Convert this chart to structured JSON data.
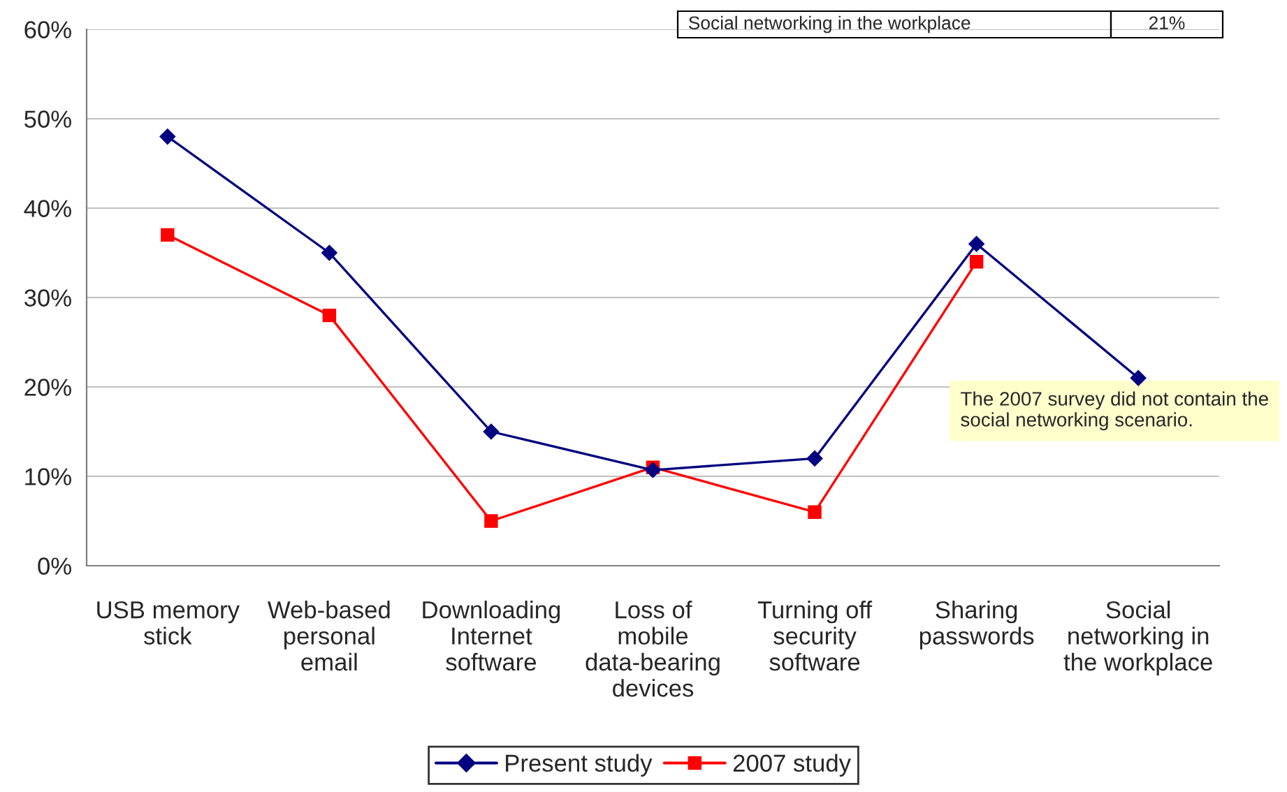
{
  "chart_data": {
    "type": "line",
    "categories": [
      "USB memory stick",
      "Web-based personal email",
      "Downloading Internet software",
      "Loss of mobile data-bearing devices",
      "Turning off security software",
      "Sharing passwords",
      "Social networking in the workplace"
    ],
    "series": [
      {
        "name": "Present study",
        "color": "#000080",
        "marker": "diamond",
        "values": [
          48,
          35,
          15,
          10.7,
          12,
          36,
          21
        ]
      },
      {
        "name": "2007 study",
        "color": "#ff0000",
        "marker": "square",
        "values": [
          37,
          28,
          5,
          11,
          6,
          34,
          null
        ]
      }
    ],
    "ylim": [
      0,
      60
    ],
    "yticks": [
      {
        "value": 0,
        "label": "0%"
      },
      {
        "value": 10,
        "label": "10%"
      },
      {
        "value": 20,
        "label": "20%"
      },
      {
        "value": 30,
        "label": "30%"
      },
      {
        "value": 40,
        "label": "40%"
      },
      {
        "value": 50,
        "label": "50%"
      },
      {
        "value": 60,
        "label": "60%"
      }
    ],
    "grid": "y",
    "legend": "bottom",
    "line_style": "solid",
    "annotations": [
      {
        "text": "The 2007 survey did not contain the social networking scenario.",
        "x": "Social networking in the workplace",
        "y": 21
      },
      "Social networking in the workplace",
      "21%"
    ]
  }
}
